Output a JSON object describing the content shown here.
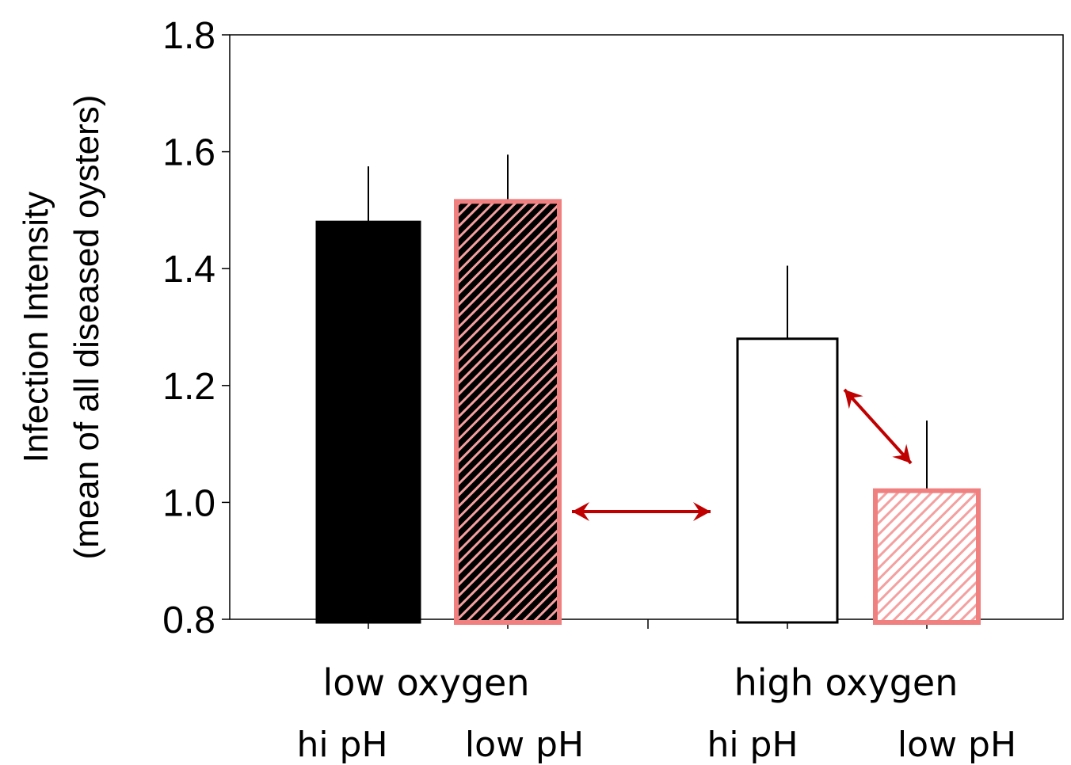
{
  "chart_data": {
    "type": "bar",
    "ylabel": [
      "Infection Intensity",
      "(mean of all diseased oysters)"
    ],
    "xlabel": "",
    "ylim": [
      0.8,
      1.8
    ],
    "yticks": [
      "0.8",
      "1.0",
      "1.2",
      "1.4",
      "1.6",
      "1.8"
    ],
    "groups": [
      {
        "label": "low oxygen",
        "bars": [
          {
            "label": "hi pH",
            "value": 1.48,
            "error": 0.095,
            "fill": "#000000",
            "stroke": "#000000",
            "hatch": false
          },
          {
            "label": "low pH",
            "value": 1.515,
            "error": 0.08,
            "fill": "#000000",
            "stroke": "#f08080",
            "hatch": true,
            "hatch_color": "#f4a0a0"
          }
        ]
      },
      {
        "label": "high oxygen",
        "bars": [
          {
            "label": "hi pH",
            "value": 1.28,
            "error": 0.125,
            "fill": "#ffffff",
            "stroke": "#000000",
            "hatch": false
          },
          {
            "label": "low pH",
            "value": 1.02,
            "error": 0.12,
            "fill": "#ffffff",
            "stroke": "#f08080",
            "hatch": true,
            "hatch_color": "#f4a0a0"
          }
        ]
      }
    ],
    "annotations": [
      {
        "type": "double-arrow",
        "from": "low oxygen / low pH",
        "to": "high oxygen / hi pH",
        "color": "#c00000"
      },
      {
        "type": "double-arrow",
        "from": "high oxygen / hi pH",
        "to": "high oxygen / low pH",
        "color": "#c00000"
      }
    ],
    "grid": false,
    "legend": "none"
  }
}
